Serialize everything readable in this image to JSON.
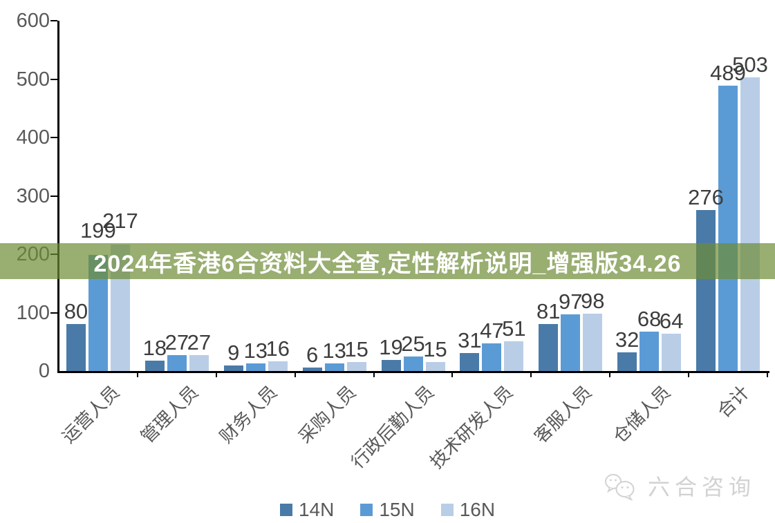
{
  "banner": {
    "text": "2024年香港6合资料大全查,定性解析说明_增强版34.26",
    "bg_rgba": "rgba(110,140,52,0.7)",
    "text_color": "#ffffff"
  },
  "watermark": {
    "label": "六合咨询",
    "icon": "wechat-icon",
    "color": "#d2d2d2"
  },
  "chart_data": {
    "type": "bar",
    "title": "",
    "xlabel": "",
    "ylabel": "",
    "categories": [
      "运营人员",
      "管理人员",
      "财务人员",
      "采购人员",
      "行政后勤人员",
      "技术研发人员",
      "客服人员",
      "仓储人员",
      "合计"
    ],
    "series": [
      {
        "name": "14N",
        "color": "#4a7aa8",
        "values": [
          80,
          18,
          9,
          6,
          19,
          31,
          81,
          32,
          276
        ]
      },
      {
        "name": "15N",
        "color": "#5b9bd5",
        "values": [
          199,
          27,
          13,
          13,
          25,
          47,
          97,
          68,
          489
        ]
      },
      {
        "name": "16N",
        "color": "#b9cde6",
        "values": [
          217,
          27,
          16,
          15,
          15,
          51,
          98,
          64,
          503
        ]
      }
    ],
    "ylim": [
      0,
      600
    ],
    "yticks": [
      0,
      100,
      200,
      300,
      400,
      500,
      600
    ],
    "grid": false,
    "value_labels": true,
    "legend_position": "bottom",
    "colors": {
      "axis": "#000000",
      "tick_label": "#595959",
      "value_label": "#3d3d3d"
    }
  }
}
